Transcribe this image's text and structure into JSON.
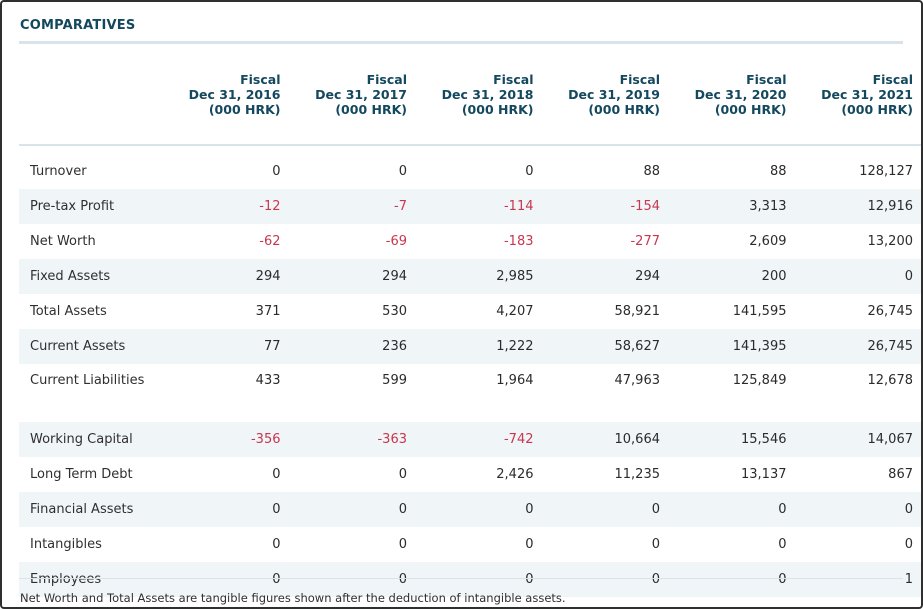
{
  "section": {
    "title": "COMPARATIVES"
  },
  "columns": [
    {
      "line1": "Fiscal",
      "line2": "Dec 31, 2016",
      "line3": "(000 HRK)"
    },
    {
      "line1": "Fiscal",
      "line2": "Dec 31, 2017",
      "line3": "(000 HRK)"
    },
    {
      "line1": "Fiscal",
      "line2": "Dec 31, 2018",
      "line3": "(000 HRK)"
    },
    {
      "line1": "Fiscal",
      "line2": "Dec 31, 2019",
      "line3": "(000 HRK)"
    },
    {
      "line1": "Fiscal",
      "line2": "Dec 31, 2020",
      "line3": "(000 HRK)"
    },
    {
      "line1": "Fiscal",
      "line2": "Dec 31, 2021",
      "line3": "(000 HRK)"
    }
  ],
  "rows": [
    {
      "label": "Turnover",
      "values": [
        "0",
        "0",
        "0",
        "88",
        "88",
        "128,127"
      ]
    },
    {
      "label": "Pre-tax Profit",
      "values": [
        "-12",
        "-7",
        "-114",
        "-154",
        "3,313",
        "12,916"
      ]
    },
    {
      "label": "Net Worth",
      "values": [
        "-62",
        "-69",
        "-183",
        "-277",
        "2,609",
        "13,200"
      ]
    },
    {
      "label": "Fixed Assets",
      "values": [
        "294",
        "294",
        "2,985",
        "294",
        "200",
        "0"
      ]
    },
    {
      "label": "Total Assets",
      "values": [
        "371",
        "530",
        "4,207",
        "58,921",
        "141,595",
        "26,745"
      ]
    },
    {
      "label": "Current Assets",
      "values": [
        "77",
        "236",
        "1,222",
        "58,627",
        "141,395",
        "26,745"
      ]
    },
    {
      "label": "Current Liabilities",
      "values": [
        "433",
        "599",
        "1,964",
        "47,963",
        "125,849",
        "12,678"
      ]
    },
    {
      "label": "Working Capital",
      "values": [
        "-356",
        "-363",
        "-742",
        "10,664",
        "15,546",
        "14,067"
      ]
    },
    {
      "label": "Long Term Debt",
      "values": [
        "0",
        "0",
        "2,426",
        "11,235",
        "13,137",
        "867"
      ]
    },
    {
      "label": "Financial Assets",
      "values": [
        "0",
        "0",
        "0",
        "0",
        "0",
        "0"
      ]
    },
    {
      "label": "Intangibles",
      "values": [
        "0",
        "0",
        "0",
        "0",
        "0",
        "0"
      ]
    },
    {
      "label": "Employees",
      "values": [
        "0",
        "0",
        "0",
        "0",
        "0",
        "1"
      ]
    }
  ],
  "colors": {
    "negative": "#c8374e",
    "header": "#13485e",
    "stripe": "#f0f5f8"
  },
  "footnote": "Net Worth and Total Assets are tangible figures shown after the deduction of intangible assets."
}
